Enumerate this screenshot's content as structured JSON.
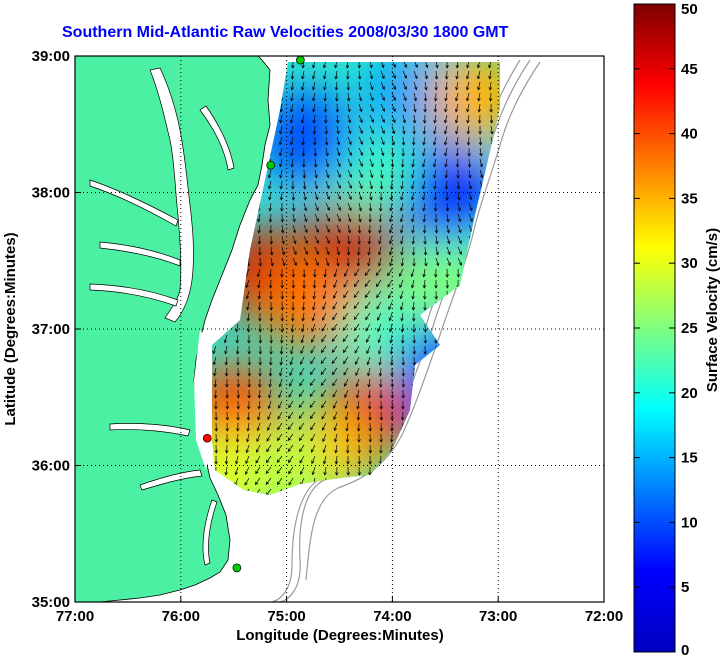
{
  "chart_data": {
    "type": "heatmap",
    "title": "Southern Mid-Atlantic Raw Velocities 2008/03/30 1800 GMT",
    "xlabel": "Longitude (Degrees:Minutes)",
    "ylabel": "Latitude (Degrees:Minutes)",
    "colorbar_label": "Surface Velocity (cm/s)",
    "x_ticks": [
      "77:00",
      "76:00",
      "75:00",
      "74:00",
      "73:00",
      "72:00"
    ],
    "x_tick_values": [
      -77,
      -76,
      -75,
      -74,
      -73,
      -72
    ],
    "y_ticks": [
      "39:00",
      "38:00",
      "37:00",
      "36:00",
      "35:00"
    ],
    "y_tick_values": [
      39,
      38,
      37,
      36,
      35
    ],
    "xlim": [
      -77,
      -72
    ],
    "ylim": [
      35,
      39
    ],
    "colorbar_ticks": [
      50,
      45,
      40,
      35,
      30,
      25,
      20,
      15,
      10,
      5,
      0
    ],
    "colorbar_range": [
      0,
      50
    ],
    "grid": "dotted",
    "colormap": "jet",
    "land_color": "#4cf0a3",
    "velocity_regions": [
      {
        "lon": -74.4,
        "lat": 37.6,
        "speed": 47
      },
      {
        "lon": -75.2,
        "lat": 37.4,
        "speed": 46
      },
      {
        "lon": -74.8,
        "lat": 37.2,
        "speed": 38
      },
      {
        "lon": -74.2,
        "lat": 36.4,
        "speed": 45
      },
      {
        "lon": -74.6,
        "lat": 36.1,
        "speed": 35
      },
      {
        "lon": -75.5,
        "lat": 36.4,
        "speed": 40
      },
      {
        "lon": -74.0,
        "lat": 37.0,
        "speed": 22
      },
      {
        "lon": -73.5,
        "lat": 37.3,
        "speed": 25
      },
      {
        "lon": -73.5,
        "lat": 38.0,
        "speed": 8
      },
      {
        "lon": -74.2,
        "lat": 38.2,
        "speed": 22
      },
      {
        "lon": -74.8,
        "lat": 38.4,
        "speed": 10
      },
      {
        "lon": -73.8,
        "lat": 38.7,
        "speed": 14
      },
      {
        "lon": -73.2,
        "lat": 38.7,
        "speed": 35
      },
      {
        "lon": -73.5,
        "lat": 36.7,
        "speed": 10
      },
      {
        "lon": -75.6,
        "lat": 35.9,
        "speed": 30
      },
      {
        "lon": -75.0,
        "lat": 35.95,
        "speed": 28
      }
    ],
    "station_markers": [
      {
        "lon": -74.87,
        "lat": 38.97,
        "color": "#00cc00"
      },
      {
        "lon": -75.15,
        "lat": 38.2,
        "color": "#00cc00"
      },
      {
        "lon": -75.75,
        "lat": 36.2,
        "color": "#ff0000"
      },
      {
        "lon": -75.47,
        "lat": 35.25,
        "color": "#00cc00"
      }
    ]
  }
}
